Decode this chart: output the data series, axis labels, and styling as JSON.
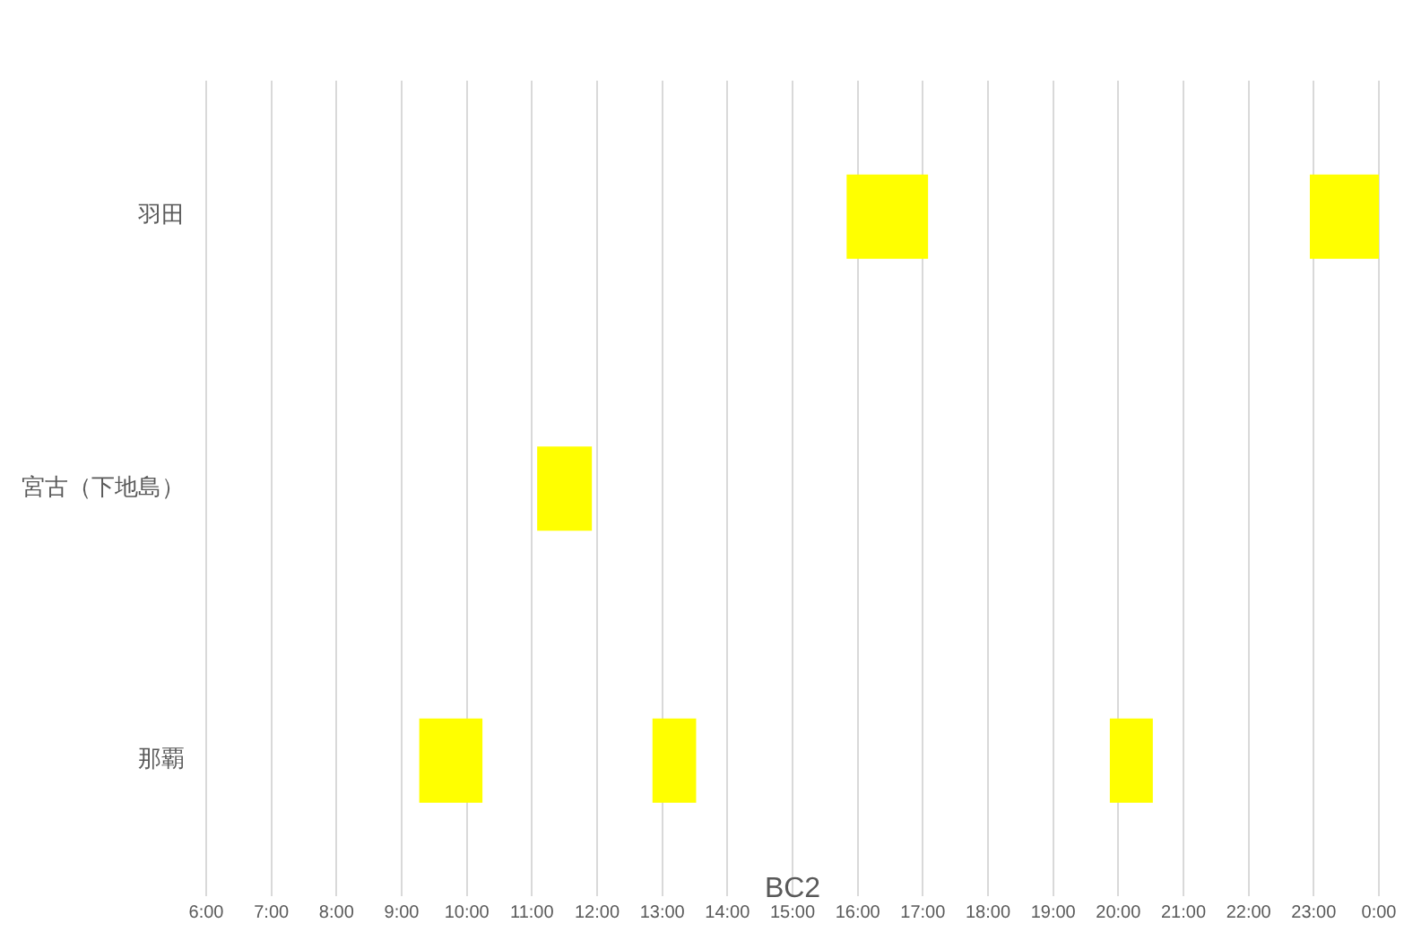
{
  "chart_data": {
    "type": "bar",
    "orientation": "horizontal",
    "xlabel": "BC2",
    "categories": [
      "羽田",
      "宮古（下地島）",
      "那覇"
    ],
    "series": [
      {
        "color": "#ffff00",
        "base": [
          15.83,
          11.08,
          9.27
        ],
        "values": [
          1.25,
          0.84,
          0.97
        ]
      },
      {
        "color": "#ffff00",
        "base": [
          22.94,
          null,
          12.85
        ],
        "values": [
          1.06,
          null,
          0.67
        ]
      },
      {
        "color": "#ffff00",
        "base": [
          null,
          null,
          19.87
        ],
        "values": [
          null,
          null,
          0.66
        ]
      }
    ],
    "xlim": [
      6,
      24
    ],
    "xticks": [
      {
        "value": 6,
        "label": "6:00"
      },
      {
        "value": 7,
        "label": "7:00"
      },
      {
        "value": 8,
        "label": "8:00"
      },
      {
        "value": 9,
        "label": "9:00"
      },
      {
        "value": 10,
        "label": "10:00"
      },
      {
        "value": 11,
        "label": "11:00"
      },
      {
        "value": 12,
        "label": "12:00"
      },
      {
        "value": 13,
        "label": "13:00"
      },
      {
        "value": 14,
        "label": "14:00"
      },
      {
        "value": 15,
        "label": "15:00"
      },
      {
        "value": 16,
        "label": "16:00"
      },
      {
        "value": 17,
        "label": "17:00"
      },
      {
        "value": 18,
        "label": "18:00"
      },
      {
        "value": 19,
        "label": "19:00"
      },
      {
        "value": 20,
        "label": "20:00"
      },
      {
        "value": 21,
        "label": "21:00"
      },
      {
        "value": 22,
        "label": "22:00"
      },
      {
        "value": 23,
        "label": "23:00"
      },
      {
        "value": 24,
        "label": "0:00"
      }
    ],
    "grid": "x",
    "legend": false
  }
}
